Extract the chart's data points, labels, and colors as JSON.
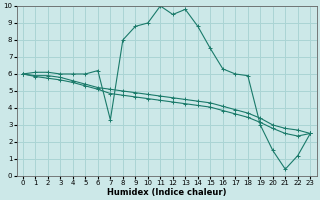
{
  "xlabel": "Humidex (Indice chaleur)",
  "bg_color": "#cce8e8",
  "grid_color": "#aad4d4",
  "line_color": "#1a7a6a",
  "xlim": [
    -0.5,
    23.5
  ],
  "ylim": [
    0,
    10
  ],
  "xticks": [
    0,
    1,
    2,
    3,
    4,
    5,
    6,
    7,
    8,
    9,
    10,
    11,
    12,
    13,
    14,
    15,
    16,
    17,
    18,
    19,
    20,
    21,
    22,
    23
  ],
  "yticks": [
    0,
    1,
    2,
    3,
    4,
    5,
    6,
    7,
    8,
    9,
    10
  ],
  "series": [
    {
      "x": [
        0,
        1,
        2,
        3,
        4,
        5,
        6,
        7,
        8,
        9,
        10,
        11,
        12,
        13,
        14,
        15,
        16,
        17,
        18,
        19,
        20,
        21,
        22,
        23
      ],
      "y": [
        6.0,
        6.1,
        6.1,
        6.0,
        6.0,
        6.0,
        6.2,
        3.3,
        8.0,
        8.8,
        9.0,
        10.0,
        9.5,
        9.8,
        8.8,
        7.5,
        6.3,
        6.0,
        5.9,
        3.0,
        1.5,
        0.4,
        1.2,
        2.5
      ]
    },
    {
      "x": [
        0,
        1,
        2,
        3,
        4,
        5,
        6,
        7,
        8,
        9,
        10,
        11,
        12,
        13,
        14,
        15,
        16,
        17,
        18,
        19,
        20,
        21,
        22,
        23
      ],
      "y": [
        6.0,
        5.9,
        5.9,
        5.8,
        5.6,
        5.4,
        5.2,
        5.1,
        5.0,
        4.9,
        4.8,
        4.7,
        4.6,
        4.5,
        4.4,
        4.3,
        4.1,
        3.9,
        3.7,
        3.4,
        3.0,
        2.8,
        2.7,
        2.5
      ]
    },
    {
      "x": [
        0,
        1,
        2,
        3,
        4,
        5,
        6,
        7,
        8,
        9,
        10,
        11,
        12,
        13,
        14,
        15,
        16,
        17,
        18,
        19,
        20,
        21,
        22,
        23
      ],
      "y": [
        6.0,
        5.85,
        5.75,
        5.65,
        5.5,
        5.3,
        5.1,
        4.85,
        4.75,
        4.65,
        4.55,
        4.45,
        4.35,
        4.25,
        4.15,
        4.05,
        3.85,
        3.65,
        3.45,
        3.15,
        2.8,
        2.5,
        2.35,
        2.5
      ]
    }
  ]
}
